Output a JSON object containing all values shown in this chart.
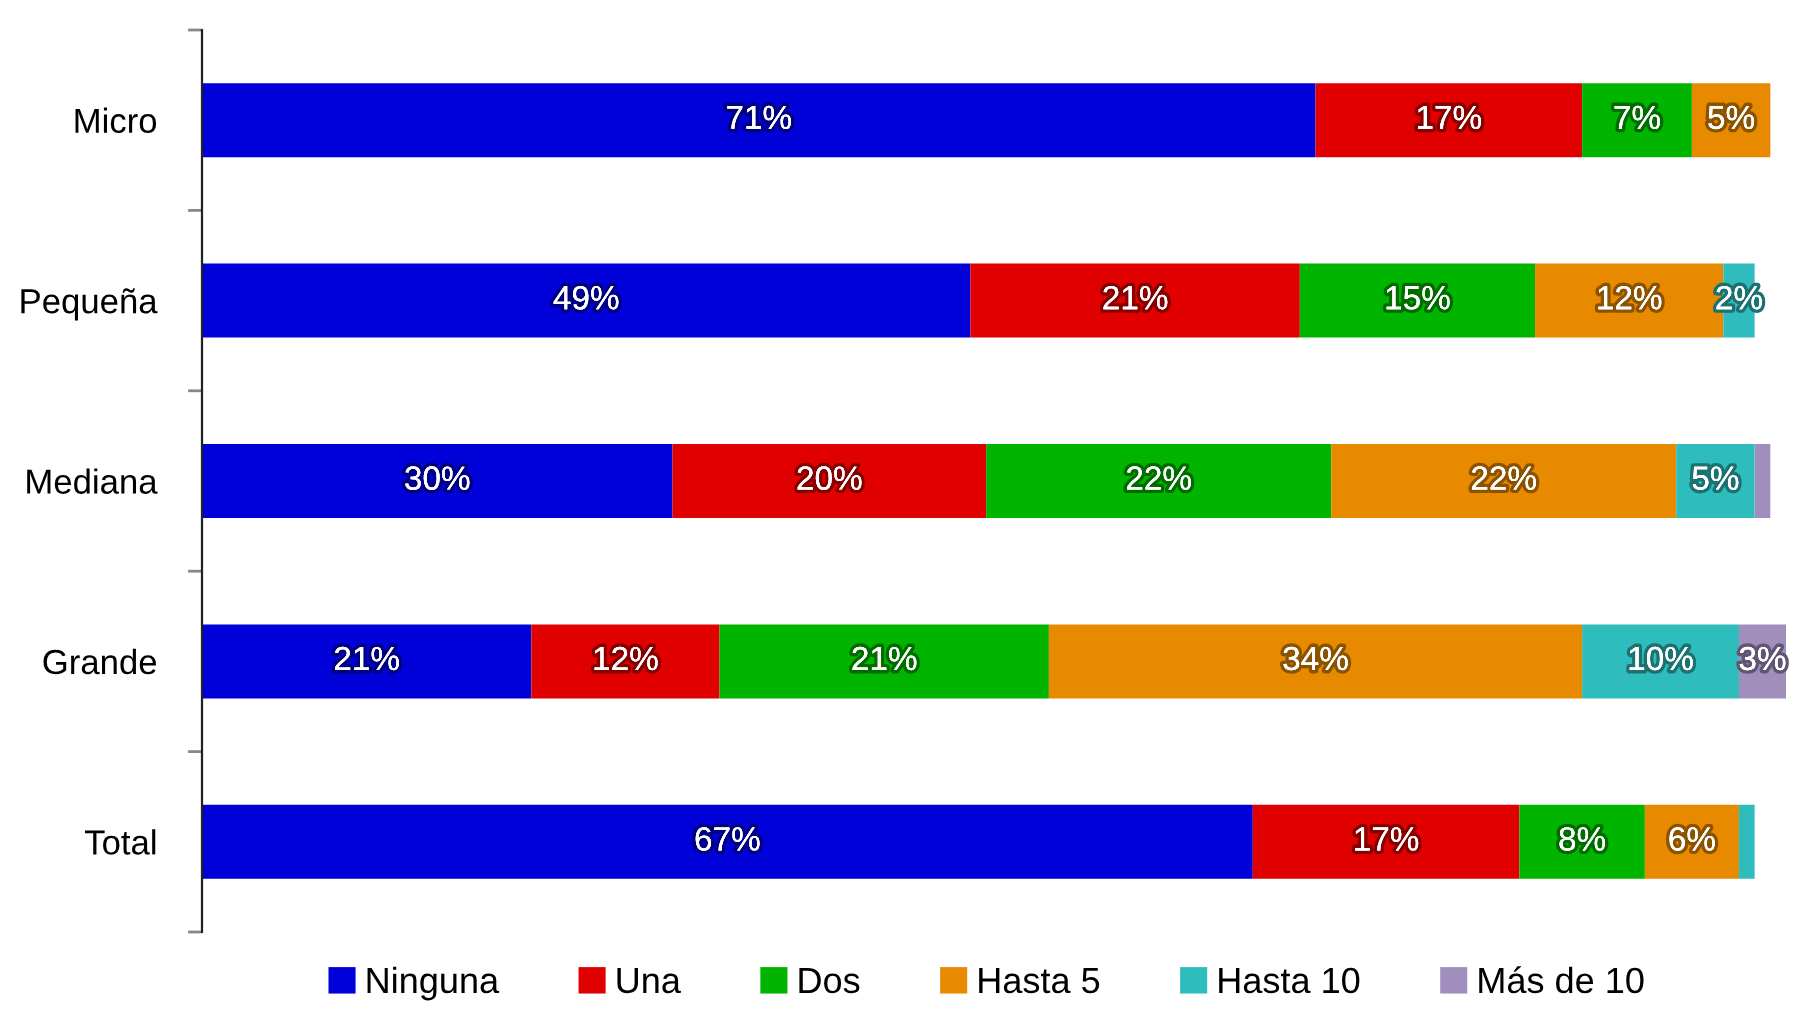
{
  "chart_data": {
    "type": "bar",
    "orientation": "horizontal",
    "stacked": true,
    "categories": [
      "Micro",
      "Pequeña",
      "Mediana",
      "Grande",
      "Total"
    ],
    "series": [
      {
        "name": "Ninguna",
        "color": "#0000d8",
        "values": [
          71,
          49,
          30,
          21,
          67
        ],
        "value_labels": [
          "71%",
          "49%",
          "30%",
          "21%",
          "67%"
        ]
      },
      {
        "name": "Una",
        "color": "#e00000",
        "values": [
          17,
          21,
          20,
          12,
          17
        ],
        "value_labels": [
          "17%",
          "21%",
          "20%",
          "12%",
          "17%"
        ]
      },
      {
        "name": "Dos",
        "color": "#00b400",
        "values": [
          7,
          15,
          22,
          21,
          8
        ],
        "value_labels": [
          "7%",
          "15%",
          "22%",
          "21%",
          "8%"
        ]
      },
      {
        "name": "Hasta 5",
        "color": "#e88a00",
        "values": [
          5,
          12,
          22,
          34,
          6
        ],
        "value_labels": [
          "5%",
          "12%",
          "22%",
          "34%",
          "6%"
        ]
      },
      {
        "name": "Hasta 10",
        "color": "#2ebcbc",
        "values": [
          null,
          2,
          5,
          10,
          1
        ],
        "value_labels": [
          null,
          "2%",
          "5%",
          "10%",
          null
        ]
      },
      {
        "name": "Más de 10",
        "color": "#a08fbc",
        "values": [
          null,
          null,
          1,
          3,
          null
        ],
        "value_labels": [
          null,
          null,
          null,
          "3%",
          null
        ]
      }
    ],
    "legend": "bottom",
    "tick_labels": "y"
  }
}
